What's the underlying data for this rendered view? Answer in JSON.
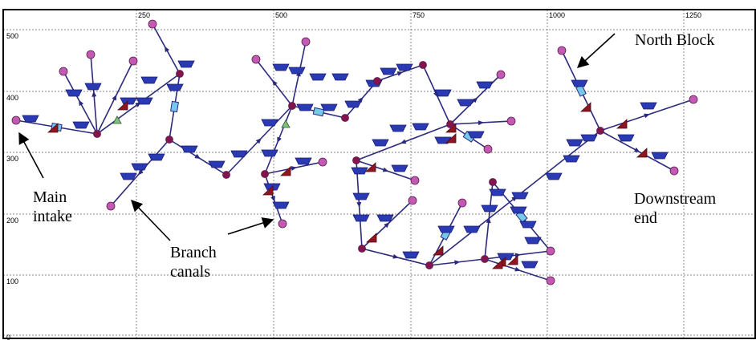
{
  "colors": {
    "canal": "#2b2a7d",
    "node": "#c25ab4",
    "node_dark": "#82154e",
    "weir": "#2a3ab5",
    "gate": "#8f1520",
    "pump": "#76c8ec",
    "pump_green": "#7fbf7f",
    "grid": "#888888"
  },
  "grid": {
    "x_ticks": [
      "250",
      "500",
      "750",
      "1000",
      "1250"
    ],
    "y_ticks": [
      "500",
      "400",
      "300",
      "200",
      "100",
      "0"
    ]
  },
  "annotations": {
    "north_block": "North Block",
    "main_intake": "Main\nintake",
    "branch_canals": "Branch\ncanals",
    "downstream_end": "Downstream\nend"
  }
}
